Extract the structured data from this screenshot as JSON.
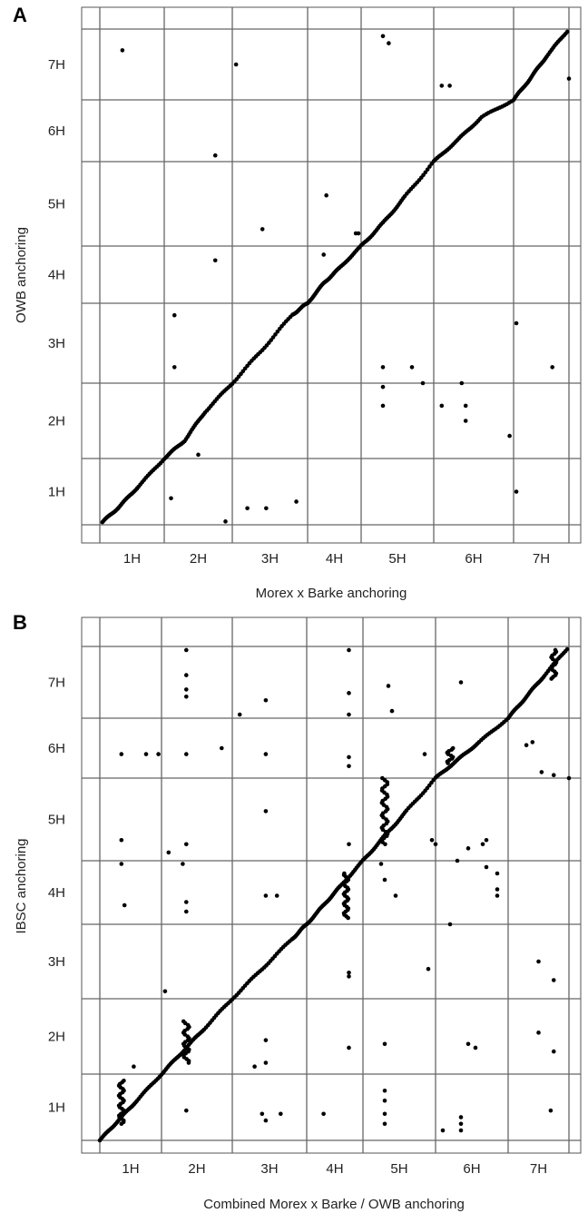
{
  "chart_data": [
    {
      "panel": "A",
      "type": "scatter",
      "xlabel": "Morex x Barke anchoring",
      "ylabel": "OWB anchoring",
      "x_ticks": [
        "1H",
        "2H",
        "3H",
        "4H",
        "5H",
        "6H",
        "7H"
      ],
      "y_ticks": [
        "1H",
        "2H",
        "3H",
        "4H",
        "5H",
        "6H",
        "7H"
      ],
      "chromosome_boundaries": [
        0,
        1,
        2,
        3,
        4,
        5,
        6,
        7
      ],
      "xlim": [
        0,
        7
      ],
      "ylim": [
        0,
        7
      ],
      "grid": true,
      "diagonal": [
        [
          0.04,
          0.04
        ],
        [
          0.3,
          0.27
        ],
        [
          0.6,
          0.58
        ],
        [
          1.0,
          1.0
        ],
        [
          1.3,
          1.24
        ],
        [
          1.6,
          1.62
        ],
        [
          2.0,
          2.0
        ],
        [
          2.4,
          2.42
        ],
        [
          2.8,
          2.86
        ],
        [
          3.0,
          3.0
        ],
        [
          3.3,
          3.35
        ],
        [
          3.6,
          3.62
        ],
        [
          4.0,
          4.0
        ],
        [
          4.3,
          4.27
        ],
        [
          4.6,
          4.58
        ],
        [
          5.0,
          5.0
        ],
        [
          5.3,
          5.35
        ],
        [
          5.6,
          5.72
        ],
        [
          6.0,
          6.0
        ],
        [
          6.3,
          6.3
        ],
        [
          6.6,
          6.62
        ],
        [
          7.0,
          7.0
        ]
      ],
      "outliers": [
        [
          0.35,
          6.7
        ],
        [
          1.1,
          0.4
        ],
        [
          1.15,
          2.2
        ],
        [
          1.15,
          2.85
        ],
        [
          1.5,
          1.05
        ],
        [
          1.75,
          5.1
        ],
        [
          1.75,
          3.75
        ],
        [
          1.9,
          0.05
        ],
        [
          2.05,
          6.5
        ],
        [
          2.2,
          0.25
        ],
        [
          2.45,
          0.25
        ],
        [
          2.4,
          4.2
        ],
        [
          2.85,
          0.35
        ],
        [
          3.3,
          3.85
        ],
        [
          3.35,
          4.6
        ],
        [
          3.9,
          4.15
        ],
        [
          3.95,
          4.15
        ],
        [
          4.3,
          6.9
        ],
        [
          4.38,
          6.8
        ],
        [
          4.3,
          2.2
        ],
        [
          4.3,
          1.95
        ],
        [
          4.3,
          1.7
        ],
        [
          4.7,
          2.2
        ],
        [
          4.85,
          2.0
        ],
        [
          5.1,
          1.7
        ],
        [
          5.2,
          6.2
        ],
        [
          5.35,
          2.0
        ],
        [
          5.4,
          1.5
        ],
        [
          5.1,
          6.2
        ],
        [
          5.4,
          1.7
        ],
        [
          5.95,
          1.3
        ],
        [
          6.05,
          2.75
        ],
        [
          6.05,
          0.5
        ],
        [
          6.7,
          2.2
        ],
        [
          7.0,
          6.3
        ]
      ]
    },
    {
      "panel": "B",
      "type": "scatter",
      "xlabel": "Combined Morex x Barke / OWB anchoring",
      "ylabel": "IBSC anchoring",
      "x_ticks": [
        "1H",
        "2H",
        "3H",
        "4H",
        "5H",
        "6H",
        "7H"
      ],
      "y_ticks": [
        "1H",
        "2H",
        "3H",
        "4H",
        "5H",
        "6H",
        "7H"
      ],
      "chromosome_boundaries": [
        0,
        1,
        2,
        3,
        4,
        5,
        6,
        7
      ],
      "xlim": [
        0,
        7
      ],
      "ylim": [
        0,
        7
      ],
      "grid": true,
      "diagonal": [
        [
          0.0,
          0.0
        ],
        [
          0.3,
          0.3
        ],
        [
          0.6,
          0.6
        ],
        [
          1.0,
          1.0
        ],
        [
          1.3,
          1.3
        ],
        [
          1.6,
          1.6
        ],
        [
          2.0,
          2.0
        ],
        [
          2.4,
          2.4
        ],
        [
          2.8,
          2.8
        ],
        [
          3.0,
          3.0
        ],
        [
          3.3,
          3.3
        ],
        [
          3.6,
          3.6
        ],
        [
          4.0,
          4.0
        ],
        [
          4.3,
          4.3
        ],
        [
          4.6,
          4.6
        ],
        [
          5.0,
          5.0
        ],
        [
          5.3,
          5.3
        ],
        [
          5.6,
          5.6
        ],
        [
          6.0,
          6.0
        ],
        [
          6.3,
          6.3
        ],
        [
          6.6,
          6.6
        ],
        [
          7.0,
          7.0
        ]
      ],
      "clusters": [
        {
          "x": 0.35,
          "y_from": 0.25,
          "y_to": 0.9
        },
        {
          "x": 1.35,
          "y_from": 1.15,
          "y_to": 1.7
        },
        {
          "x": 3.7,
          "y_from": 3.1,
          "y_to": 3.8
        },
        {
          "x": 4.3,
          "y_from": 4.2,
          "y_to": 5.0
        },
        {
          "x": 5.2,
          "y_from": 5.25,
          "y_to": 5.5
        },
        {
          "x": 6.75,
          "y_from": 6.55,
          "y_to": 6.95
        }
      ],
      "outliers": [
        [
          0.35,
          5.4
        ],
        [
          0.35,
          4.25
        ],
        [
          0.35,
          3.95
        ],
        [
          0.4,
          3.3
        ],
        [
          0.55,
          1.1
        ],
        [
          0.75,
          5.4
        ],
        [
          0.95,
          5.4
        ],
        [
          1.05,
          2.1
        ],
        [
          1.1,
          4.1
        ],
        [
          1.3,
          3.95
        ],
        [
          1.35,
          4.2
        ],
        [
          1.35,
          3.35
        ],
        [
          1.35,
          3.2
        ],
        [
          1.35,
          5.4
        ],
        [
          1.35,
          6.6
        ],
        [
          1.35,
          6.4
        ],
        [
          1.35,
          6.3
        ],
        [
          1.35,
          6.95
        ],
        [
          1.35,
          0.45
        ],
        [
          1.85,
          5.5
        ],
        [
          2.1,
          6.05
        ],
        [
          2.3,
          1.1
        ],
        [
          2.45,
          6.25
        ],
        [
          2.45,
          5.4
        ],
        [
          2.45,
          4.6
        ],
        [
          2.45,
          3.45
        ],
        [
          2.45,
          1.45
        ],
        [
          2.45,
          1.15
        ],
        [
          2.4,
          0.4
        ],
        [
          2.45,
          0.3
        ],
        [
          2.6,
          3.45
        ],
        [
          2.65,
          0.4
        ],
        [
          3.3,
          0.4
        ],
        [
          3.75,
          6.95
        ],
        [
          3.75,
          6.35
        ],
        [
          3.75,
          6.05
        ],
        [
          3.75,
          5.35
        ],
        [
          3.75,
          5.2
        ],
        [
          3.75,
          4.2
        ],
        [
          3.75,
          2.35
        ],
        [
          3.75,
          2.3
        ],
        [
          3.75,
          1.35
        ],
        [
          4.4,
          6.1
        ],
        [
          4.35,
          6.45
        ],
        [
          4.25,
          3.95
        ],
        [
          4.3,
          3.7
        ],
        [
          4.45,
          3.45
        ],
        [
          4.3,
          1.4
        ],
        [
          4.3,
          0.75
        ],
        [
          4.3,
          0.6
        ],
        [
          4.3,
          0.4
        ],
        [
          4.3,
          0.25
        ],
        [
          4.85,
          5.4
        ],
        [
          5.0,
          4.2
        ],
        [
          4.95,
          4.25
        ],
        [
          4.9,
          2.4
        ],
        [
          5.1,
          0.15
        ],
        [
          5.2,
          3.0
        ],
        [
          5.45,
          1.4
        ],
        [
          5.35,
          6.5
        ],
        [
          5.55,
          1.35
        ],
        [
          5.7,
          3.9
        ],
        [
          5.65,
          4.2
        ],
        [
          5.7,
          4.25
        ],
        [
          5.35,
          0.35
        ],
        [
          5.35,
          0.25
        ],
        [
          5.35,
          0.15
        ],
        [
          5.3,
          4.0
        ],
        [
          5.45,
          4.15
        ],
        [
          5.85,
          3.8
        ],
        [
          5.85,
          3.55
        ],
        [
          5.85,
          3.45
        ],
        [
          6.3,
          5.55
        ],
        [
          6.4,
          5.6
        ],
        [
          6.5,
          2.5
        ],
        [
          6.55,
          5.1
        ],
        [
          6.5,
          1.55
        ],
        [
          6.7,
          0.45
        ],
        [
          6.75,
          1.3
        ],
        [
          6.75,
          2.25
        ],
        [
          6.75,
          5.05
        ],
        [
          7.0,
          5.0
        ]
      ]
    }
  ]
}
